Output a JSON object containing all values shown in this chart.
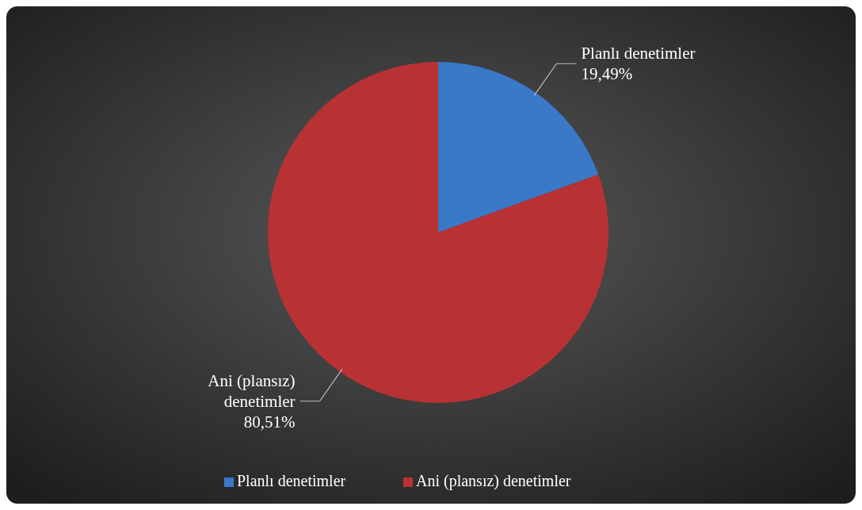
{
  "chart_data": {
    "type": "pie",
    "categories": [
      "Planlı denetimler",
      "Ani (plansız) denetimler"
    ],
    "values": [
      19.49,
      80.51
    ],
    "value_labels": [
      "19,49%",
      "80,51%"
    ],
    "colors": [
      "#3a78c8",
      "#b83234"
    ],
    "legend": "bottom"
  }
}
